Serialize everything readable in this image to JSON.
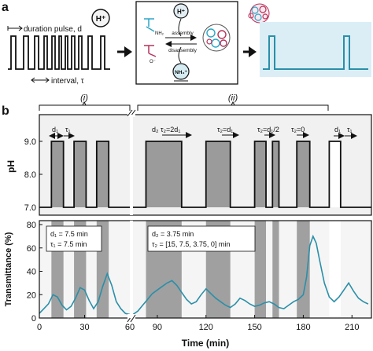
{
  "panel_a": {
    "label": "a",
    "duration_label": "duration pulse, d",
    "interval_label": "interval, τ",
    "proton_symbol": "H⁺",
    "scheme": {
      "proton_top": "H⁺",
      "amine": "NH₂",
      "carboxylate": "O⁻",
      "assembly": "assembly",
      "disassembly": "disassembly",
      "ammonium": "NH₃⁺"
    },
    "colors": {
      "pulse_line": "#111111",
      "response_line": "#2a8fa8",
      "response_bg": "#dbeef6",
      "scheme_cyan": "#2aa6c7",
      "scheme_magenta": "#b5335a"
    }
  },
  "panel_b": {
    "label": "b",
    "group_i": "(i)",
    "group_ii": "(ii)",
    "ph_axis": {
      "label": "pH",
      "ticks": [
        "7.0",
        "8.0",
        "9.0"
      ]
    },
    "trans_axis": {
      "label": "Transmittance (%)",
      "ticks": [
        "0",
        "20",
        "40",
        "60",
        "80"
      ]
    },
    "time_axis": {
      "label": "Time (min)",
      "ticks": [
        "0",
        "30",
        "60",
        "90",
        "120",
        "150",
        "180",
        "210"
      ]
    },
    "annotations": {
      "d1": "d₁",
      "tau1": "τ₁",
      "d2_tau2": "d₂ τ₂=2d₁",
      "tau2_d1": "τ₂=d₁",
      "tau2_half": "τ₂=d₁/2",
      "tau2_zero": "τ₂=0"
    },
    "box_i": {
      "line1": "d₁ = 7.5 min",
      "line2": "τ₁ = 7.5 min"
    },
    "box_ii": {
      "line1": "d₂ = 3.75 min",
      "line2": "τ₂ = [15, 7.5, 3.75, 0] min"
    }
  },
  "chart_data": {
    "type": "line",
    "x_unit": "min",
    "ph_profile": {
      "ylim": [
        7.0,
        9.0
      ],
      "pulses_min": [
        [
          8,
          16
        ],
        [
          23,
          31
        ],
        [
          38,
          46
        ],
        [
          83,
          105
        ],
        [
          120,
          135
        ],
        [
          150,
          157
        ],
        [
          161,
          165
        ],
        [
          176,
          184
        ],
        [
          196,
          203
        ]
      ]
    },
    "transmittance": {
      "ylim": [
        0,
        80
      ],
      "points": [
        [
          0,
          4
        ],
        [
          3,
          8
        ],
        [
          6,
          12
        ],
        [
          9,
          20
        ],
        [
          12,
          18
        ],
        [
          15,
          11
        ],
        [
          18,
          7
        ],
        [
          21,
          10
        ],
        [
          24,
          17
        ],
        [
          27,
          26
        ],
        [
          30,
          24
        ],
        [
          33,
          15
        ],
        [
          36,
          8
        ],
        [
          39,
          14
        ],
        [
          42,
          27
        ],
        [
          45,
          38
        ],
        [
          48,
          28
        ],
        [
          51,
          14
        ],
        [
          54,
          8
        ],
        [
          57,
          4
        ],
        [
          60,
          3
        ],
        [
          75,
          3
        ],
        [
          78,
          6
        ],
        [
          81,
          11
        ],
        [
          84,
          16
        ],
        [
          87,
          21
        ],
        [
          90,
          24
        ],
        [
          93,
          27
        ],
        [
          96,
          30
        ],
        [
          99,
          32
        ],
        [
          102,
          28
        ],
        [
          105,
          22
        ],
        [
          108,
          16
        ],
        [
          111,
          12
        ],
        [
          114,
          14
        ],
        [
          117,
          20
        ],
        [
          120,
          25
        ],
        [
          123,
          21
        ],
        [
          126,
          17
        ],
        [
          129,
          14
        ],
        [
          132,
          11
        ],
        [
          135,
          9
        ],
        [
          138,
          12
        ],
        [
          141,
          17
        ],
        [
          144,
          15
        ],
        [
          147,
          12
        ],
        [
          150,
          10
        ],
        [
          153,
          11
        ],
        [
          156,
          13
        ],
        [
          159,
          14
        ],
        [
          162,
          12
        ],
        [
          165,
          9
        ],
        [
          168,
          8
        ],
        [
          171,
          11
        ],
        [
          174,
          14
        ],
        [
          177,
          16
        ],
        [
          180,
          20
        ],
        [
          182,
          35
        ],
        [
          184,
          62
        ],
        [
          186,
          70
        ],
        [
          188,
          64
        ],
        [
          190,
          50
        ],
        [
          193,
          30
        ],
        [
          196,
          18
        ],
        [
          199,
          14
        ],
        [
          202,
          18
        ],
        [
          205,
          24
        ],
        [
          208,
          30
        ],
        [
          211,
          23
        ],
        [
          214,
          17
        ],
        [
          217,
          14
        ],
        [
          220,
          12
        ]
      ]
    }
  }
}
